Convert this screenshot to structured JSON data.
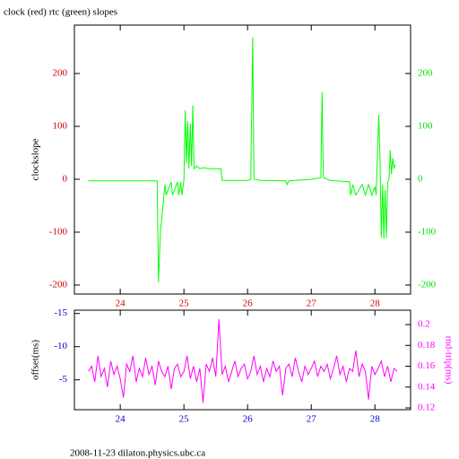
{
  "chart_data": [
    {
      "type": "line",
      "title": "clock (red) rtc (green) slopes",
      "ylabel": "clockslope",
      "xlim": [
        23.28,
        28.56
      ],
      "xticks": [
        24,
        25,
        26,
        27,
        28
      ],
      "ylim": [
        -217,
        291.5
      ],
      "yticks": [
        -200,
        -100,
        0,
        100,
        200
      ],
      "y2lim": [
        -217,
        291.5
      ],
      "y2ticks": [
        -200,
        -100,
        0,
        100,
        200
      ],
      "x_color": "#d00000",
      "y_color": "#d00000",
      "y2_color": "#00e000",
      "series": [
        {
          "name": "rtc",
          "color": "#00ff00",
          "x": [
            23.5,
            24.0,
            24.5,
            24.58,
            24.6,
            24.63,
            24.68,
            24.7,
            24.72,
            24.8,
            24.82,
            24.9,
            24.92,
            24.95,
            24.97,
            25.0,
            25.02,
            25.04,
            25.06,
            25.08,
            25.1,
            25.12,
            25.14,
            25.16,
            25.2,
            25.25,
            25.3,
            25.4,
            25.5,
            25.58,
            25.6,
            26.0,
            26.05,
            26.08,
            26.1,
            26.2,
            26.6,
            26.62,
            26.65,
            27.0,
            27.1,
            27.15,
            27.17,
            27.19,
            27.3,
            27.6,
            27.62,
            27.65,
            27.7,
            27.8,
            27.85,
            27.9,
            27.95,
            28.0,
            28.02,
            28.04,
            28.06,
            28.08,
            28.1,
            28.12,
            28.14,
            28.16,
            28.18,
            28.2,
            28.22,
            28.24,
            28.26,
            28.28,
            28.3,
            28.32
          ],
          "values": [
            -3,
            -3,
            -3,
            -3,
            -195,
            -100,
            -40,
            -10,
            -30,
            -5,
            -30,
            -5,
            -30,
            -5,
            -30,
            0,
            130,
            30,
            110,
            20,
            105,
            25,
            140,
            20,
            25,
            20,
            22,
            20,
            20,
            20,
            -2,
            -2,
            0,
            268,
            0,
            -2,
            -3,
            -10,
            -3,
            0,
            2,
            3,
            165,
            3,
            -2,
            -5,
            -30,
            -10,
            -30,
            -10,
            -30,
            -10,
            -30,
            -15,
            -30,
            50,
            122,
            40,
            -110,
            -10,
            -112,
            -20,
            -110,
            -5,
            0,
            55,
            10,
            40,
            20,
            28
          ]
        }
      ]
    },
    {
      "type": "line",
      "ylabel": "offset(ms)",
      "y2label": "rnd-trip(ms)",
      "footer": "2008-11-23 dilaton.physics.ubc.ca",
      "xlim": [
        23.28,
        28.56
      ],
      "xticks": [
        24,
        25,
        26,
        27,
        28
      ],
      "ylim": [
        -0.5,
        -15.5
      ],
      "yticks": [
        -15,
        -10,
        -5
      ],
      "y2lim": [
        0.1183,
        0.2138
      ],
      "y2ticks": [
        0.12,
        0.14,
        0.16,
        0.18,
        0.2
      ],
      "x_color": "#0000d0",
      "y_color": "#0000d0",
      "y2_color": "#ff00ff",
      "series": [
        {
          "name": "rnd-trip",
          "color": "#ff00ff",
          "axis": "y2",
          "x": [
            23.5,
            23.55,
            23.6,
            23.65,
            23.7,
            23.75,
            23.8,
            23.85,
            23.9,
            23.95,
            24.0,
            24.05,
            24.1,
            24.15,
            24.2,
            24.25,
            24.3,
            24.35,
            24.4,
            24.45,
            24.5,
            24.55,
            24.6,
            24.65,
            24.7,
            24.75,
            24.8,
            24.85,
            24.9,
            24.95,
            25.0,
            25.05,
            25.1,
            25.15,
            25.2,
            25.25,
            25.3,
            25.35,
            25.4,
            25.45,
            25.5,
            25.55,
            25.6,
            25.65,
            25.7,
            25.75,
            25.8,
            25.85,
            25.9,
            25.95,
            26.0,
            26.05,
            26.1,
            26.15,
            26.2,
            26.25,
            26.3,
            26.35,
            26.4,
            26.45,
            26.5,
            26.55,
            26.6,
            26.65,
            26.7,
            26.75,
            26.8,
            26.85,
            26.9,
            26.95,
            27.0,
            27.05,
            27.1,
            27.15,
            27.2,
            27.25,
            27.3,
            27.35,
            27.4,
            27.45,
            27.5,
            27.55,
            27.6,
            27.65,
            27.7,
            27.75,
            27.8,
            27.85,
            27.9,
            27.95,
            28.0,
            28.05,
            28.1,
            28.15,
            28.2,
            28.25,
            28.3,
            28.35
          ],
          "values": [
            0.155,
            0.16,
            0.145,
            0.17,
            0.15,
            0.158,
            0.14,
            0.165,
            0.152,
            0.16,
            0.148,
            0.13,
            0.162,
            0.155,
            0.17,
            0.145,
            0.158,
            0.15,
            0.168,
            0.152,
            0.16,
            0.142,
            0.165,
            0.155,
            0.15,
            0.16,
            0.138,
            0.158,
            0.162,
            0.15,
            0.155,
            0.17,
            0.148,
            0.16,
            0.145,
            0.158,
            0.125,
            0.162,
            0.155,
            0.168,
            0.15,
            0.205,
            0.152,
            0.16,
            0.145,
            0.155,
            0.165,
            0.15,
            0.158,
            0.162,
            0.148,
            0.155,
            0.17,
            0.152,
            0.16,
            0.145,
            0.158,
            0.15,
            0.165,
            0.155,
            0.16,
            0.132,
            0.158,
            0.162,
            0.15,
            0.168,
            0.155,
            0.145,
            0.16,
            0.152,
            0.158,
            0.165,
            0.15,
            0.16,
            0.155,
            0.162,
            0.148,
            0.158,
            0.17,
            0.152,
            0.16,
            0.145,
            0.158,
            0.155,
            0.175,
            0.15,
            0.162,
            0.155,
            0.128,
            0.16,
            0.152,
            0.158,
            0.165,
            0.15,
            0.16,
            0.145,
            0.158,
            0.155
          ]
        }
      ]
    }
  ]
}
